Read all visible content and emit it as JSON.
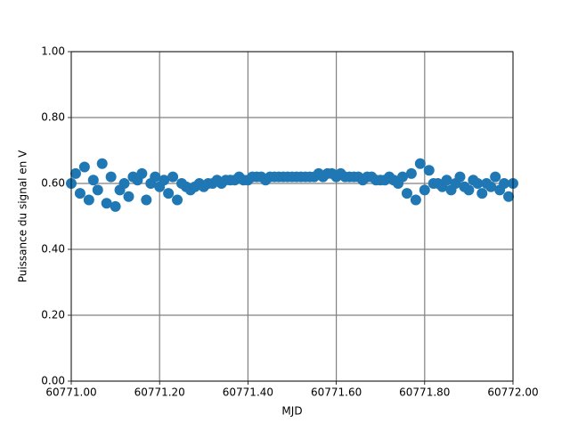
{
  "chart_data": {
    "type": "scatter",
    "x_label": "MJD",
    "y_label": "Puissance du signal en V",
    "xlim": [
      60771,
      60772
    ],
    "ylim": [
      0,
      1
    ],
    "xticks": [
      {
        "value": 60771,
        "label": "60771.00"
      },
      {
        "value": 60771.2,
        "label": "60771.20"
      },
      {
        "value": 60771.4,
        "label": "60771.40"
      },
      {
        "value": 60771.6,
        "label": "60771.60"
      },
      {
        "value": 60771.8,
        "label": "60771.80"
      },
      {
        "value": 60772,
        "label": "60772.00"
      }
    ],
    "yticks": [
      {
        "value": 0,
        "label": "0.00"
      },
      {
        "value": 0.2,
        "label": "0.20"
      },
      {
        "value": 0.4,
        "label": "0.40"
      },
      {
        "value": 0.6,
        "label": "0.60"
      },
      {
        "value": 0.8,
        "label": "0.80"
      },
      {
        "value": 1,
        "label": "1.00"
      }
    ],
    "grid": true,
    "color": "#1f77b4",
    "x": [
      60771,
      60771.01,
      60771.02,
      60771.03,
      60771.04,
      60771.05,
      60771.06,
      60771.07,
      60771.08,
      60771.09,
      60771.1,
      60771.11,
      60771.12,
      60771.13,
      60771.14,
      60771.15,
      60771.16,
      60771.17,
      60771.18,
      60771.19,
      60771.2,
      60771.21,
      60771.22,
      60771.23,
      60771.24,
      60771.25,
      60771.26,
      60771.27,
      60771.28,
      60771.29,
      60771.3,
      60771.31,
      60771.32,
      60771.33,
      60771.34,
      60771.35,
      60771.36,
      60771.37,
      60771.38,
      60771.39,
      60771.4,
      60771.41,
      60771.42,
      60771.43,
      60771.44,
      60771.45,
      60771.46,
      60771.47,
      60771.48,
      60771.49,
      60771.5,
      60771.51,
      60771.52,
      60771.53,
      60771.54,
      60771.55,
      60771.56,
      60771.57,
      60771.58,
      60771.59,
      60771.6,
      60771.61,
      60771.62,
      60771.63,
      60771.64,
      60771.65,
      60771.66,
      60771.67,
      60771.68,
      60771.69,
      60771.7,
      60771.71,
      60771.72,
      60771.73,
      60771.74,
      60771.75,
      60771.76,
      60771.77,
      60771.78,
      60771.79,
      60771.8,
      60771.81,
      60771.82,
      60771.83,
      60771.84,
      60771.85,
      60771.86,
      60771.87,
      60771.88,
      60771.89,
      60771.9,
      60771.91,
      60771.92,
      60771.93,
      60771.94,
      60771.95,
      60771.96,
      60771.97,
      60771.98,
      60771.99,
      60772
    ],
    "values": [
      0.6,
      0.63,
      0.57,
      0.65,
      0.55,
      0.61,
      0.58,
      0.66,
      0.54,
      0.62,
      0.53,
      0.58,
      0.6,
      0.56,
      0.62,
      0.61,
      0.63,
      0.55,
      0.6,
      0.62,
      0.59,
      0.61,
      0.57,
      0.62,
      0.55,
      0.6,
      0.59,
      0.58,
      0.59,
      0.6,
      0.59,
      0.6,
      0.6,
      0.61,
      0.6,
      0.61,
      0.61,
      0.61,
      0.62,
      0.61,
      0.61,
      0.62,
      0.62,
      0.62,
      0.61,
      0.62,
      0.62,
      0.62,
      0.62,
      0.62,
      0.62,
      0.62,
      0.62,
      0.62,
      0.62,
      0.62,
      0.63,
      0.62,
      0.63,
      0.63,
      0.62,
      0.63,
      0.62,
      0.62,
      0.62,
      0.62,
      0.61,
      0.62,
      0.62,
      0.61,
      0.61,
      0.61,
      0.62,
      0.61,
      0.6,
      0.62,
      0.57,
      0.63,
      0.55,
      0.66,
      0.58,
      0.64,
      0.6,
      0.6,
      0.59,
      0.61,
      0.58,
      0.6,
      0.62,
      0.59,
      0.58,
      0.61,
      0.6,
      0.57,
      0.6,
      0.59,
      0.62,
      0.58,
      0.6,
      0.56,
      0.6
    ]
  }
}
